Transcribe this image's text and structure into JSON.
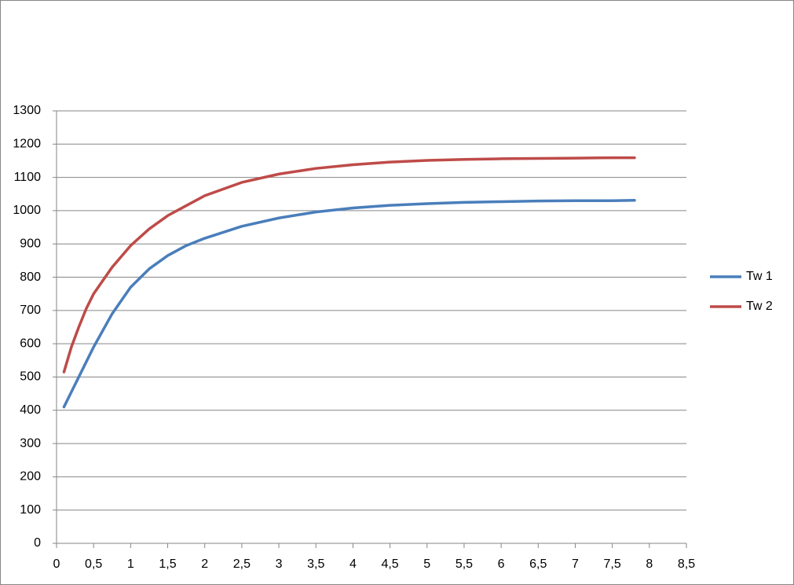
{
  "chart_data": {
    "type": "line",
    "x": [
      0.1,
      0.2,
      0.3,
      0.4,
      0.5,
      0.75,
      1,
      1.25,
      1.5,
      1.75,
      2,
      2.5,
      3,
      3.5,
      4,
      4.5,
      5,
      5.5,
      6,
      6.5,
      7,
      7.5,
      7.8
    ],
    "series": [
      {
        "name": "Tw 1",
        "color": "#4a7ebb",
        "values": [
          410,
          455,
          500,
          545,
          590,
          690,
          770,
          825,
          865,
          895,
          917,
          953,
          978,
          996,
          1008,
          1016,
          1021,
          1025,
          1027,
          1029,
          1030,
          1030,
          1031
        ]
      },
      {
        "name": "Tw 2",
        "color": "#be4b48",
        "values": [
          515,
          590,
          650,
          705,
          750,
          830,
          895,
          945,
          985,
          1015,
          1045,
          1085,
          1110,
          1127,
          1138,
          1146,
          1151,
          1154,
          1156,
          1157,
          1158,
          1159,
          1159
        ]
      }
    ],
    "xlim": [
      0,
      8.5
    ],
    "xticks": [
      0,
      {
        "value": 0.5,
        "label": "0,5"
      },
      1,
      {
        "value": 1.5,
        "label": "1,5"
      },
      2,
      {
        "value": 2.5,
        "label": "2,5"
      },
      3,
      {
        "value": 3.5,
        "label": "3,5"
      },
      4,
      {
        "value": 4.5,
        "label": "4,5"
      },
      5,
      {
        "value": 5.5,
        "label": "5,5"
      },
      6,
      {
        "value": 6.5,
        "label": "6,5"
      },
      7,
      {
        "value": 7.5,
        "label": "7,5"
      },
      8,
      {
        "value": 8.5,
        "label": "8,5"
      }
    ],
    "ylim": [
      0,
      1300
    ],
    "yticks": [
      0,
      100,
      200,
      300,
      400,
      500,
      600,
      700,
      800,
      900,
      1000,
      1100,
      1200,
      1300
    ],
    "grid": true,
    "legend": "right"
  }
}
